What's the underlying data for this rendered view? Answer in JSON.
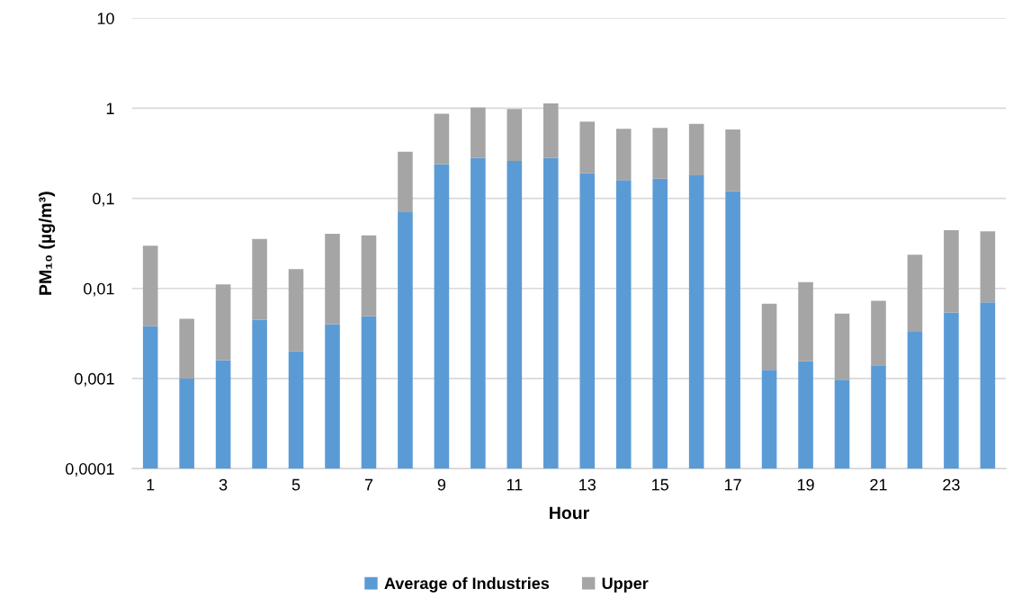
{
  "chart_data": {
    "type": "bar",
    "stacked": true,
    "log": "y",
    "xlabel": "Hour",
    "ylabel": "PM₁₀ (µg/m³)",
    "categories": [
      "1",
      null,
      "3",
      null,
      "5",
      null,
      "7",
      null,
      "9",
      null,
      "11",
      null,
      "13",
      null,
      "15",
      null,
      "17",
      null,
      "19",
      null,
      "21",
      null,
      "23",
      null
    ],
    "series": [
      {
        "name": "Average of Industries",
        "color": "#5b9bd5",
        "values": [
          0.0038,
          0.001,
          0.0016,
          0.0045,
          0.002,
          0.004,
          0.0049,
          0.07,
          0.24,
          0.28,
          0.26,
          0.28,
          0.19,
          0.16,
          0.165,
          0.18,
          0.12,
          0.00125,
          0.00155,
          0.00097,
          0.0014,
          0.0033,
          0.0054,
          0.007
        ]
      },
      {
        "name": "Upper",
        "color": "#a5a5a5",
        "values": [
          0.026,
          0.0036,
          0.0095,
          0.031,
          0.0144,
          0.0365,
          0.034,
          0.26,
          0.63,
          0.74,
          0.72,
          0.85,
          0.52,
          0.43,
          0.44,
          0.49,
          0.46,
          0.0055,
          0.0102,
          0.0043,
          0.0059,
          0.0204,
          0.039,
          0.036
        ]
      }
    ],
    "ylim": [
      0.0001,
      10
    ],
    "yticks": [
      {
        "value": 0.0001,
        "label": "0,0001"
      },
      {
        "value": 0.001,
        "label": "0,001"
      },
      {
        "value": 0.01,
        "label": "0,01"
      },
      {
        "value": 0.1,
        "label": "0,1"
      },
      1,
      10
    ],
    "grid": "y",
    "legend": "bottom"
  }
}
